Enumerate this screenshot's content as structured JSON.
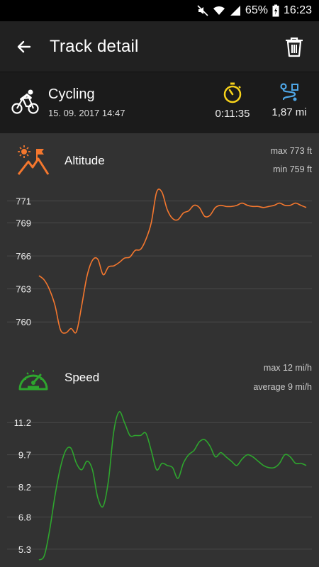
{
  "status_bar": {
    "battery": "65%",
    "time": "16:23"
  },
  "header": {
    "title": "Track detail"
  },
  "summary": {
    "activity": "Cycling",
    "date": "15. 09. 2017 14:47",
    "duration": "0:11:35",
    "distance": "1,87 mi"
  },
  "altitude": {
    "label": "Altitude",
    "max_text": "max 773 ft",
    "min_text": "min 759 ft",
    "accent": "#f4772e"
  },
  "speed": {
    "label": "Speed",
    "max_text": "max 12 mi/h",
    "avg_text": "average 9 mi/h",
    "accent": "#2ea52e"
  },
  "colors": {
    "timer": "#f7d21a",
    "route": "#4ea6e6"
  },
  "chart_data": [
    {
      "type": "line",
      "ylabel": "",
      "xlabel": "",
      "y_ticks": [
        "760",
        "763",
        "766",
        "769",
        "771"
      ],
      "y_tick_values": [
        760,
        763,
        766,
        769,
        771
      ],
      "ylim": [
        757.5,
        772.0
      ],
      "grid": true,
      "series": [
        {
          "color": "#f4772e",
          "x": [
            0,
            2,
            4,
            6,
            8,
            10,
            12,
            14,
            16,
            18,
            20,
            22,
            24,
            26,
            28,
            30,
            32,
            34,
            36,
            38,
            40,
            42,
            44,
            46,
            48,
            50,
            52,
            54,
            56,
            58,
            60,
            62,
            64,
            66,
            68,
            70,
            72,
            74,
            76,
            78,
            80,
            82,
            84,
            86,
            88,
            90,
            92,
            94,
            96,
            98,
            100
          ],
          "values": [
            764.2,
            763.8,
            762.9,
            761.5,
            759.3,
            759.0,
            759.4,
            759.1,
            761.5,
            764.2,
            765.6,
            765.7,
            764.3,
            765.0,
            765.1,
            765.4,
            765.8,
            765.9,
            766.5,
            766.6,
            767.5,
            769.0,
            771.8,
            771.8,
            770.2,
            769.4,
            769.3,
            769.9,
            770.1,
            770.6,
            770.4,
            769.6,
            769.7,
            770.4,
            770.6,
            770.5,
            770.5,
            770.6,
            770.8,
            770.6,
            770.5,
            770.5,
            770.4,
            770.5,
            770.6,
            770.8,
            770.6,
            770.6,
            770.8,
            770.6,
            770.4
          ]
        }
      ]
    },
    {
      "type": "line",
      "ylabel": "",
      "xlabel": "",
      "y_ticks": [
        "5.3",
        "6.8",
        "8.2",
        "9.7",
        "11.2"
      ],
      "y_tick_values": [
        5.3,
        6.8,
        8.2,
        9.7,
        11.2
      ],
      "ylim": [
        4.7,
        11.9
      ],
      "grid": true,
      "series": [
        {
          "color": "#2ea52e",
          "x": [
            0,
            2,
            4,
            6,
            8,
            10,
            12,
            14,
            16,
            18,
            20,
            22,
            24,
            26,
            28,
            30,
            32,
            34,
            36,
            38,
            40,
            42,
            44,
            46,
            48,
            50,
            52,
            54,
            56,
            58,
            60,
            62,
            64,
            66,
            68,
            70,
            72,
            74,
            76,
            78,
            80,
            82,
            84,
            86,
            88,
            90,
            92,
            94,
            96,
            98,
            100
          ],
          "values": [
            4.8,
            5.0,
            6.2,
            7.8,
            9.1,
            9.9,
            10.0,
            9.3,
            9.0,
            9.4,
            9.0,
            7.7,
            7.3,
            8.5,
            10.8,
            11.7,
            11.2,
            10.6,
            10.6,
            10.6,
            10.7,
            9.9,
            9.0,
            9.3,
            9.2,
            9.1,
            8.6,
            9.3,
            9.7,
            9.9,
            10.3,
            10.4,
            10.1,
            9.6,
            9.8,
            9.6,
            9.4,
            9.2,
            9.5,
            9.7,
            9.6,
            9.4,
            9.2,
            9.1,
            9.1,
            9.3,
            9.7,
            9.6,
            9.3,
            9.3,
            9.2
          ]
        }
      ]
    }
  ]
}
